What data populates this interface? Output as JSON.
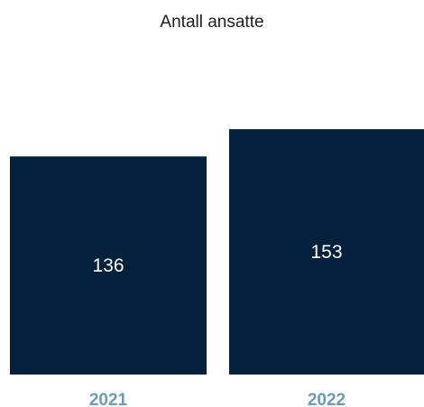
{
  "chart_data": {
    "type": "bar",
    "title": "Antall ansatte",
    "categories": [
      "2021",
      "2022"
    ],
    "values": [
      136,
      153
    ],
    "xlabel": "",
    "ylabel": "",
    "ylim": [
      0,
      170
    ],
    "grid": false,
    "data_labels": true,
    "colors": {
      "bar": "#03203c",
      "category_label": "#6d9ab8",
      "data_label": "#ffffff",
      "title": "#1d1d1d"
    }
  }
}
